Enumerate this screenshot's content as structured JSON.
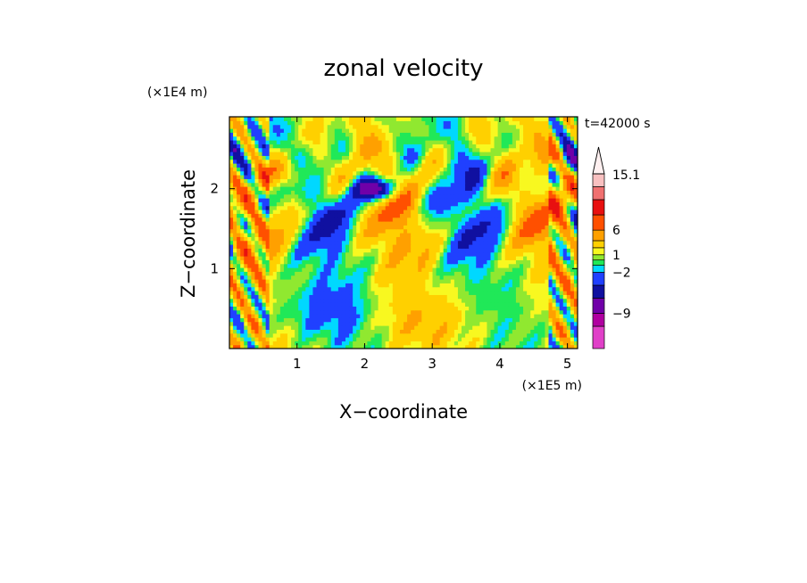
{
  "chart_data": {
    "type": "heatmap",
    "title": "zonal velocity",
    "xlabel": "X−coordinate",
    "ylabel": "Z−coordinate",
    "x_unit": "(×1E5 m)",
    "y_unit": "(×1E4 m)",
    "time_label": "t=42000 s",
    "xlim": [
      0,
      5.15
    ],
    "ylim": [
      0,
      2.9
    ],
    "x_ticks": [
      "1",
      "2",
      "3",
      "4",
      "5"
    ],
    "y_ticks": [
      "1",
      "2"
    ],
    "colorbar": {
      "labels": [
        "15.1",
        "6",
        "1",
        "−2",
        "−9"
      ],
      "label_values": [
        15.1,
        6,
        1,
        -2,
        -9
      ],
      "levels": [
        -16,
        -12,
        -9,
        -6,
        -4,
        -2,
        -1,
        0,
        1,
        2,
        4,
        6,
        9,
        12,
        15.1
      ],
      "colors": [
        "#e040c8",
        "#b000a0",
        "#7000a8",
        "#1010a0",
        "#2040ff",
        "#00d8ff",
        "#20e858",
        "#90e830",
        "#f8f820",
        "#ffd000",
        "#ffa000",
        "#ff5000",
        "#e81010",
        "#f07070",
        "#f8c0c0"
      ],
      "extend_top": true
    },
    "grid": false,
    "legend": "colorbar right"
  }
}
